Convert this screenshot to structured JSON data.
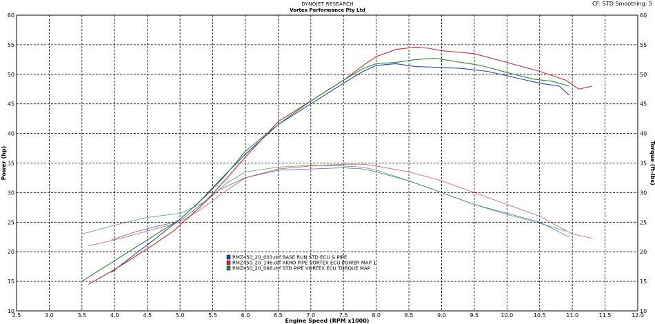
{
  "header": {
    "title": "DYNOJET RESEARCH",
    "subtitle": "Vortex Performance Pty Ltd",
    "correction": "CF: STD  Smoothing: 5"
  },
  "chart_data": {
    "type": "line",
    "xlabel": "Engine Speed (RPM x1000)",
    "ylabel_left": "Power (hp)",
    "ylabel_right": "Torque (ft-lbs)",
    "xlim": [
      2.5,
      12.0
    ],
    "ylim": [
      10,
      60
    ],
    "x_ticks": [
      "2.5",
      "3.0",
      "3.5",
      "4.0",
      "4.5",
      "5.0",
      "5.5",
      "6.0",
      "6.5",
      "7.0",
      "7.5",
      "8.0",
      "8.5",
      "9.0",
      "9.5",
      "10.0",
      "10.5",
      "11.0",
      "11.5",
      "12.0"
    ],
    "y_ticks": [
      "10",
      "15",
      "20",
      "25",
      "30",
      "35",
      "40",
      "45",
      "50",
      "55",
      "60"
    ],
    "grid": true,
    "legend": "center-left",
    "series": [
      {
        "name": "RMZ450_20_003.drf BASE RUN STD ECU & PIPE",
        "color": "#1f3fbf",
        "power": {
          "x": [
            3.95,
            4.3,
            4.6,
            5.0,
            5.3,
            5.6,
            6.0,
            6.5,
            7.0,
            7.5,
            7.8,
            8.0,
            8.3,
            8.6,
            8.9,
            9.3,
            9.7,
            10.1,
            10.5,
            10.8,
            10.95
          ],
          "y": [
            16.5,
            19.5,
            22.0,
            25.5,
            28.5,
            32.0,
            36.5,
            41.5,
            45.0,
            48.5,
            50.5,
            51.5,
            51.8,
            51.3,
            51.2,
            51.0,
            50.5,
            49.5,
            48.5,
            48.0,
            46.5
          ]
        },
        "torque": {
          "x": [
            3.95,
            4.3,
            4.6,
            5.0,
            5.3,
            5.6,
            6.0,
            6.5,
            7.0,
            7.5,
            7.8,
            8.0,
            8.5,
            9.0,
            9.5,
            10.0,
            10.5,
            10.95
          ],
          "y": [
            22.0,
            23.3,
            24.2,
            25.2,
            27.8,
            30.5,
            32.5,
            33.8,
            34.0,
            34.2,
            34.0,
            33.5,
            32.0,
            30.0,
            28.0,
            26.5,
            25.0,
            22.5
          ]
        }
      },
      {
        "name": "RMZ450_20_146.drf AKRO PIPE VORTEX ECU POWER MAP 1",
        "color": "#cc2a2a",
        "power": {
          "x": [
            3.6,
            4.0,
            4.5,
            4.9,
            5.3,
            5.6,
            6.0,
            6.5,
            7.0,
            7.5,
            7.8,
            8.0,
            8.3,
            8.6,
            8.8,
            9.0,
            9.5,
            10.0,
            10.5,
            10.9,
            11.1,
            11.3
          ],
          "y": [
            14.5,
            17.0,
            20.5,
            23.5,
            27.5,
            31.0,
            36.0,
            42.0,
            45.5,
            49.0,
            51.5,
            53.0,
            54.2,
            54.6,
            54.4,
            54.0,
            53.5,
            52.0,
            50.5,
            49.0,
            47.5,
            48.0
          ]
        },
        "torque": {
          "x": [
            3.6,
            4.0,
            4.5,
            5.0,
            5.3,
            5.6,
            6.0,
            6.5,
            7.0,
            7.5,
            7.8,
            8.0,
            8.5,
            9.0,
            9.5,
            10.0,
            10.5,
            11.0,
            11.3
          ],
          "y": [
            21.0,
            22.0,
            23.5,
            25.0,
            27.0,
            29.5,
            32.5,
            34.0,
            34.5,
            34.8,
            34.8,
            34.5,
            33.5,
            32.0,
            30.0,
            28.0,
            26.0,
            23.0,
            22.3
          ]
        }
      },
      {
        "name": "RMZ450_20_086.drf STD PIPE VORTEX ECU TORQUE MAP",
        "color": "#2a8a3a",
        "power": {
          "x": [
            3.5,
            4.0,
            4.5,
            5.0,
            5.4,
            5.7,
            6.0,
            6.5,
            7.0,
            7.5,
            7.8,
            8.0,
            8.3,
            8.6,
            8.9,
            9.2,
            9.6,
            10.0,
            10.4,
            10.7,
            10.95
          ],
          "y": [
            15.0,
            18.5,
            22.0,
            25.5,
            29.5,
            33.0,
            37.0,
            41.5,
            45.5,
            49.0,
            51.0,
            51.8,
            52.0,
            52.5,
            52.7,
            52.2,
            51.5,
            50.3,
            49.2,
            48.8,
            48.0
          ]
        },
        "torque": {
          "x": [
            3.5,
            4.0,
            4.5,
            5.0,
            5.4,
            5.7,
            6.0,
            6.5,
            7.0,
            7.5,
            7.8,
            8.0,
            8.5,
            9.0,
            9.5,
            10.0,
            10.5,
            10.9
          ],
          "y": [
            23.0,
            24.5,
            25.8,
            26.5,
            28.5,
            31.5,
            33.5,
            34.3,
            34.6,
            34.5,
            34.3,
            33.8,
            32.0,
            30.0,
            28.0,
            26.3,
            24.8,
            23.5
          ]
        }
      }
    ]
  }
}
